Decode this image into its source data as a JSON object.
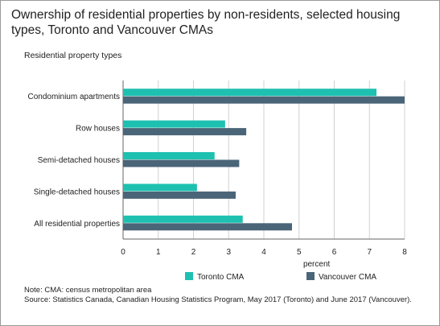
{
  "title": "Ownership of residential properties by non-residents, selected housing types, Toronto and Vancouver CMAs",
  "note": "Note: CMA: census metropolitan area",
  "source": "Source: Statistics Canada, Canadian Housing Statistics Program, May 2017 (Toronto) and June 2017 (Vancouver).",
  "chart_data": {
    "type": "bar",
    "orientation": "horizontal",
    "ylabel": "Residential property types",
    "xlabel": "percent",
    "xlim": [
      0,
      8
    ],
    "xticks": [
      0,
      1,
      2,
      3,
      4,
      5,
      6,
      7,
      8
    ],
    "grid": true,
    "legend_position": "bottom",
    "categories": [
      "Condominium apartments",
      "Row houses",
      "Semi-detached houses",
      "Single-detached houses",
      "All residential properties"
    ],
    "series": [
      {
        "name": "Toronto CMA",
        "color": "#1ec0b0",
        "values": [
          7.2,
          2.9,
          2.6,
          2.1,
          3.4
        ]
      },
      {
        "name": "Vancouver CMA",
        "color": "#4a6578",
        "values": [
          8.0,
          3.5,
          3.3,
          3.2,
          4.8
        ]
      }
    ]
  }
}
